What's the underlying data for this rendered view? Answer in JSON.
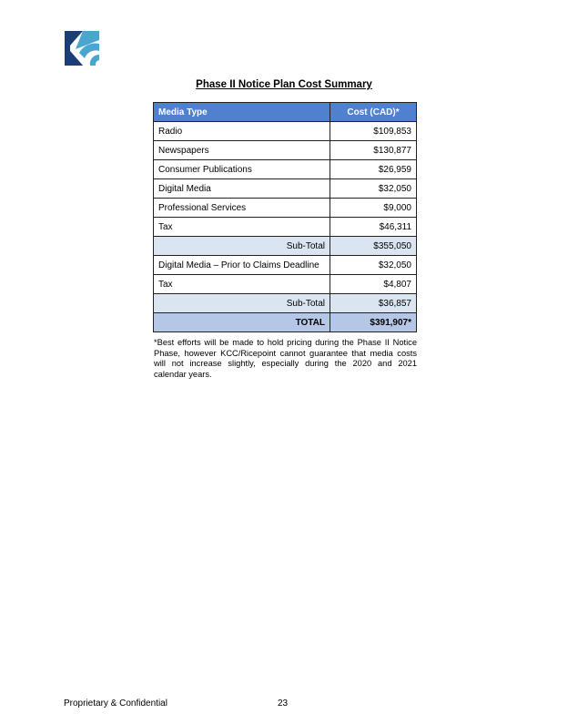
{
  "logo": {
    "name": "KCC logo",
    "colors": {
      "dark": "#1b3e78",
      "light": "#4aa6cf"
    }
  },
  "title": "Phase II Notice Plan Cost Summary",
  "table": {
    "headers": [
      "Media Type",
      "Cost (CAD)*"
    ],
    "rows": [
      {
        "type": "item",
        "label": "Radio",
        "cost": "$109,853"
      },
      {
        "type": "item",
        "label": "Newspapers",
        "cost": "$130,877"
      },
      {
        "type": "item",
        "label": "Consumer Publications",
        "cost": "$26,959"
      },
      {
        "type": "item",
        "label": "Digital Media",
        "cost": "$32,050"
      },
      {
        "type": "item",
        "label": "Professional Services",
        "cost": "$9,000"
      },
      {
        "type": "item",
        "label": "Tax",
        "cost": "$46,311"
      },
      {
        "type": "sub",
        "label": "Sub-Total",
        "cost": "$355,050"
      },
      {
        "type": "item",
        "label": "Digital Media – Prior to Claims Deadline",
        "cost": "$32,050"
      },
      {
        "type": "item",
        "label": "Tax",
        "cost": "$4,807"
      },
      {
        "type": "sub",
        "label": "Sub-Total",
        "cost": "$36,857"
      },
      {
        "type": "total",
        "label": "TOTAL",
        "cost": "$391,907*"
      }
    ]
  },
  "note": "*Best efforts will be made to hold pricing during the Phase II Notice Phase, however KCC/Ricepoint cannot guarantee that media costs will not increase slightly, especially during the 2020 and 2021 calendar years.",
  "footer": {
    "left": "Proprietary & Confidential",
    "page": "23"
  }
}
